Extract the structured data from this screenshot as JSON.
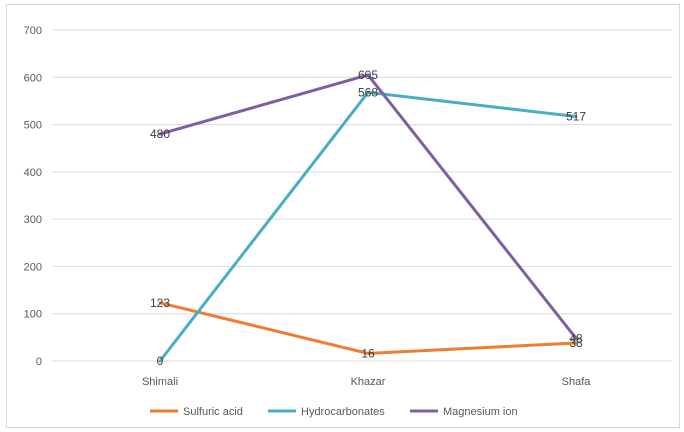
{
  "chart_data": {
    "type": "line",
    "title": "",
    "xlabel": "",
    "ylabel": "",
    "categories": [
      "Shimali",
      "Khazar",
      "Shafa"
    ],
    "ylim": [
      0,
      700
    ],
    "yticks": [
      0,
      100,
      200,
      300,
      400,
      500,
      600,
      700
    ],
    "grid": true,
    "legend_position": "bottom",
    "series": [
      {
        "name": "Sulfuric acid",
        "values": [
          123,
          16,
          38
        ],
        "color": "#ed7d31"
      },
      {
        "name": "Hydrocarbonates",
        "values": [
          0,
          568,
          517
        ],
        "color": "#4bacc6"
      },
      {
        "name": "Magnesium ion",
        "values": [
          480,
          605,
          48
        ],
        "color": "#7f5fa2"
      }
    ]
  }
}
